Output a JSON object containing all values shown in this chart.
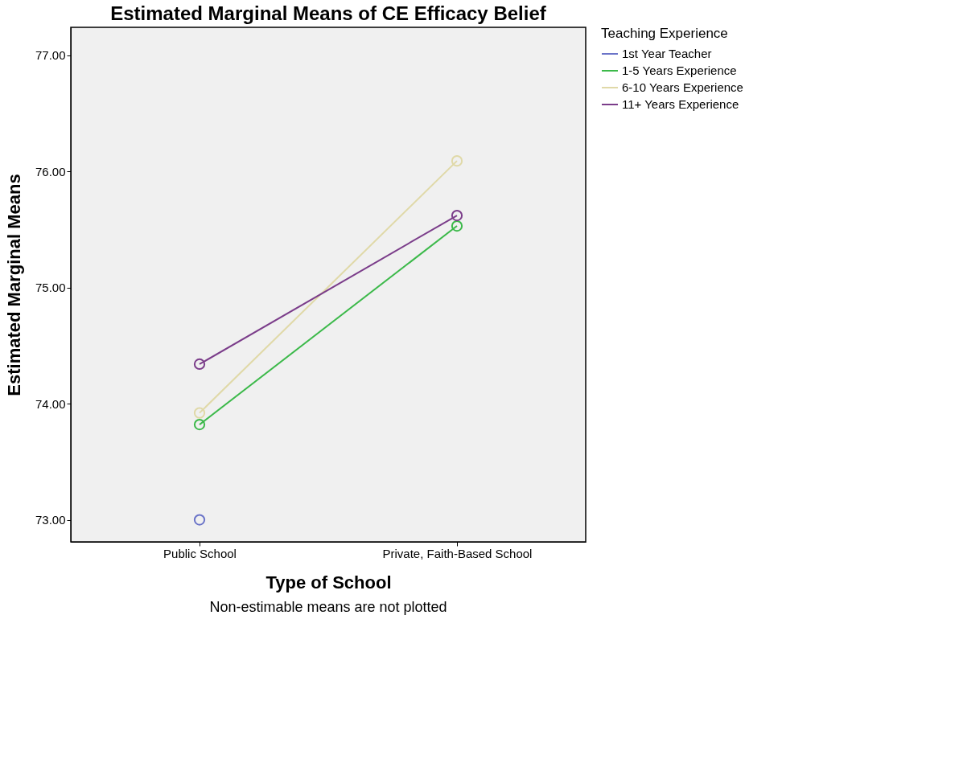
{
  "chart_data": {
    "type": "line",
    "title": "Estimated Marginal Means of CE Efficacy Belief",
    "xlabel": "Type of School",
    "ylabel": "Estimated Marginal Means",
    "legend_title": "Teaching Experience",
    "categories": [
      "Public School",
      "Private, Faith-Based School"
    ],
    "series": [
      {
        "name": "1st Year Teacher",
        "color": "#6b74c8",
        "values": [
          73.0,
          null
        ]
      },
      {
        "name": "1-5 Years Experience",
        "color": "#3cb94a",
        "values": [
          73.82,
          75.53
        ]
      },
      {
        "name": "6-10 Years Experience",
        "color": "#e0d9a8",
        "values": [
          73.92,
          76.09
        ]
      },
      {
        "name": "11+ Years Experience",
        "color": "#7b3d8a",
        "values": [
          74.34,
          75.62
        ]
      }
    ],
    "ylim": [
      72.81,
      77.24
    ],
    "yticks": [
      {
        "value": 73,
        "label": "73.00"
      },
      {
        "value": 74,
        "label": "74.00"
      },
      {
        "value": 75,
        "label": "75.00"
      },
      {
        "value": 76,
        "label": "76.00"
      },
      {
        "value": 77,
        "label": "77.00"
      }
    ],
    "annotations": [
      "Non-estimable means are not plotted"
    ],
    "marker": "circle",
    "line_style": "solid",
    "grid": false,
    "legend": "top right"
  }
}
